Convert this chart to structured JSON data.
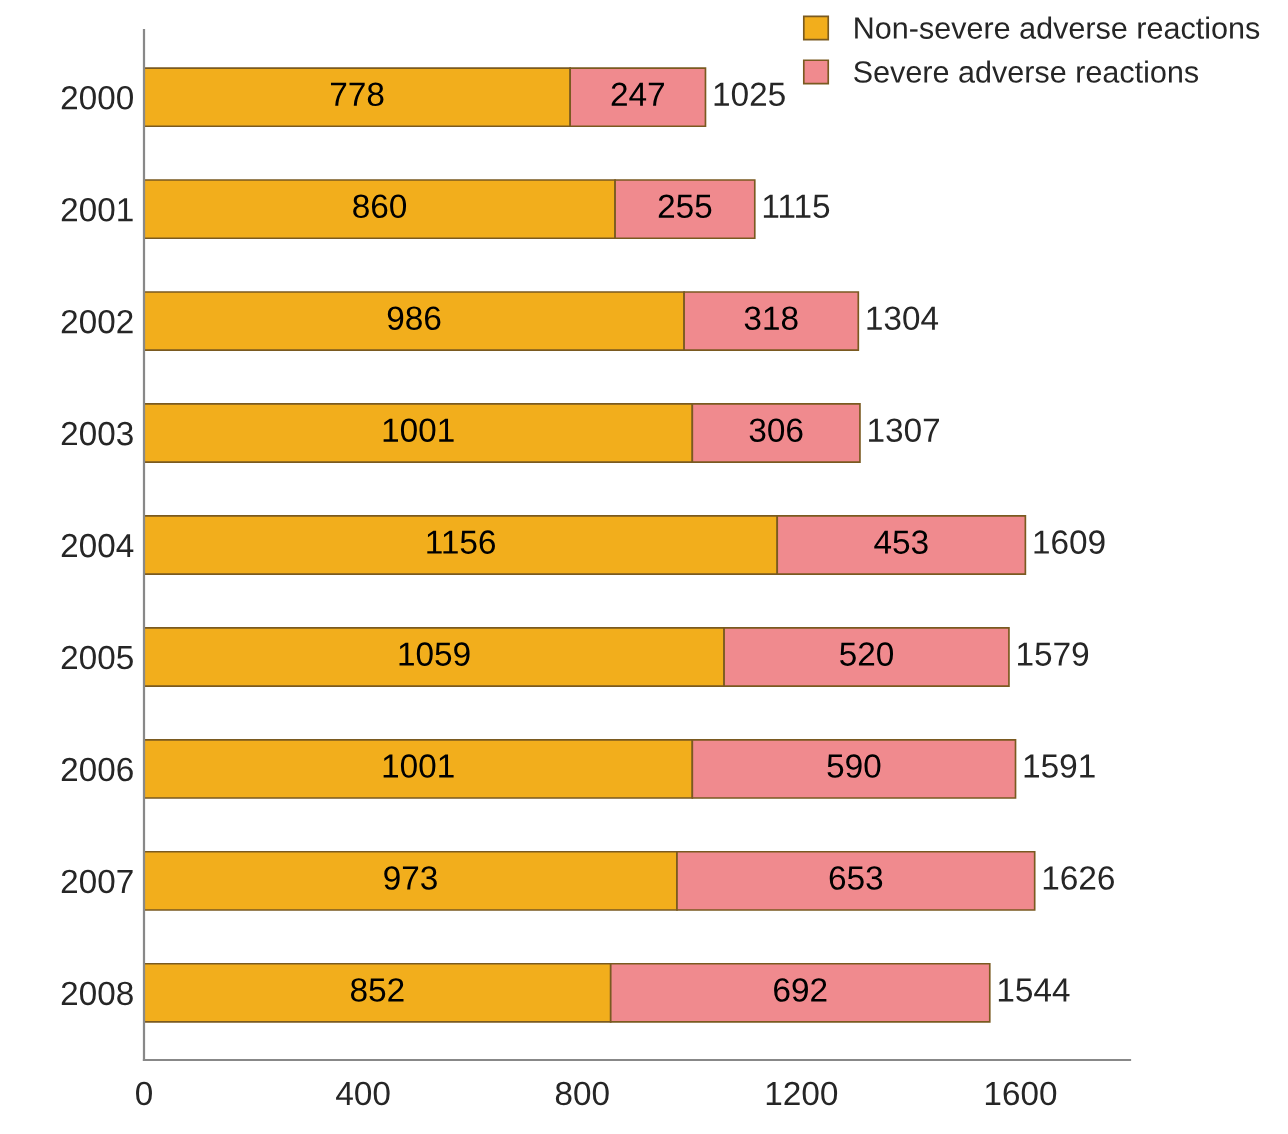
{
  "chart_data": {
    "type": "bar",
    "orientation": "horizontal",
    "stacked": true,
    "categories": [
      "2000",
      "2001",
      "2002",
      "2003",
      "2004",
      "2005",
      "2006",
      "2007",
      "2008"
    ],
    "series": [
      {
        "name": "Non-severe adverse reactions",
        "color": "#f2ae1c",
        "values": [
          778,
          860,
          986,
          1001,
          1156,
          1059,
          1001,
          973,
          852
        ]
      },
      {
        "name": "Severe adverse reactions",
        "color": "#f08a8e",
        "values": [
          247,
          255,
          318,
          306,
          453,
          520,
          590,
          653,
          692
        ]
      }
    ],
    "totals": [
      "1025",
      "1115",
      "1304",
      "1307",
      "1609",
      "1579",
      "1591",
      "1626",
      "1544"
    ],
    "data_labels": true,
    "xlim": [
      0,
      1800
    ],
    "xticks": [
      0,
      400,
      800,
      1200,
      1600
    ],
    "grid": false,
    "legend": "top right"
  }
}
